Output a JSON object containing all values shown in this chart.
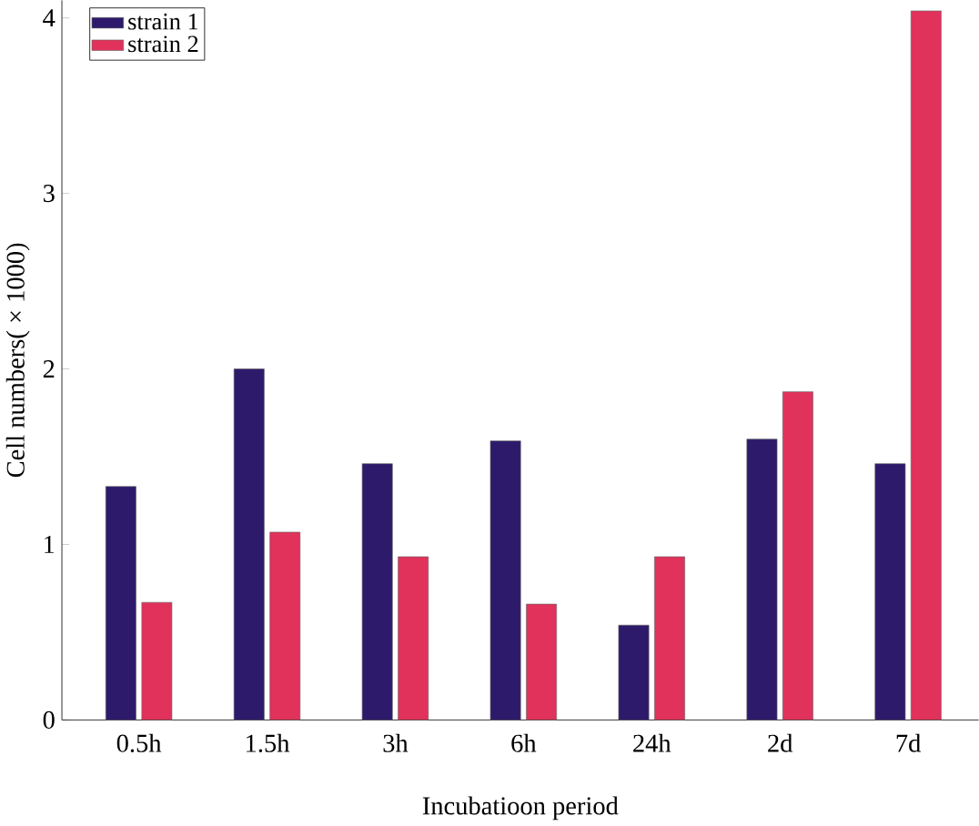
{
  "chart_data": {
    "type": "bar",
    "xlabel": "Incubatioon period",
    "ylabel": "Cell numbers( × 1000)",
    "categories": [
      "0.5h",
      "1.5h",
      "3h",
      "6h",
      "24h",
      "2d",
      "7d"
    ],
    "series": [
      {
        "name": "strain 1",
        "color": "#2e1a6b",
        "values": [
          1.33,
          2.0,
          1.46,
          1.59,
          0.54,
          1.6,
          1.46
        ]
      },
      {
        "name": "strain 2",
        "color": "#e0325a",
        "values": [
          0.67,
          1.07,
          0.93,
          0.66,
          0.93,
          1.87,
          4.04
        ]
      }
    ],
    "ylim": [
      0,
      4.1
    ],
    "yticks": [
      0,
      1,
      2,
      3,
      4
    ],
    "legend": "top left",
    "grid": false
  }
}
